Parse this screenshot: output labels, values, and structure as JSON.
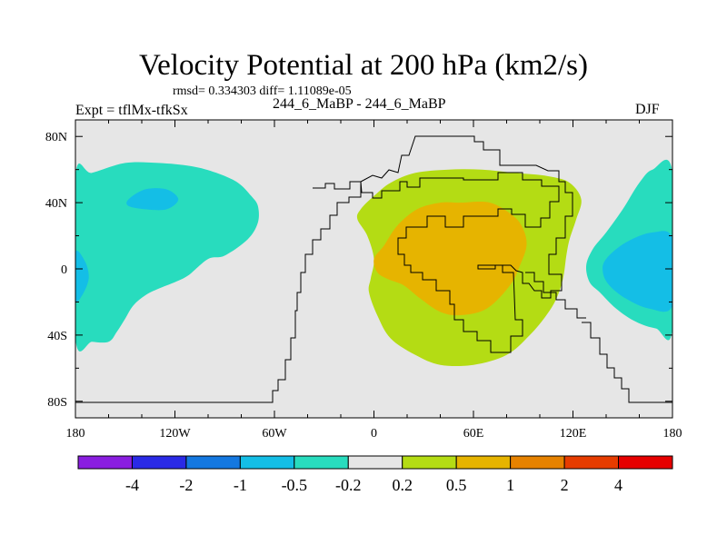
{
  "header": {
    "title": "Velocity Potential at 200 hPa (km2/s)",
    "stats": "rmsd= 0.334303 diff= 1.11089e-05",
    "experiment": "Expt = tflMx-tfkSx",
    "comparison": "244_6_MaBP - 244_6_MaBP",
    "season": "DJF"
  },
  "chart_data": {
    "type": "contour-map",
    "title": "Velocity Potential at 200 hPa (km2/s)",
    "x_range": [
      -180,
      180
    ],
    "y_range": [
      -90,
      90
    ],
    "x_ticks": [
      {
        "value": -180,
        "label": "180"
      },
      {
        "value": -120,
        "label": "120W"
      },
      {
        "value": -60,
        "label": "60W"
      },
      {
        "value": 0,
        "label": "0"
      },
      {
        "value": 60,
        "label": "60E"
      },
      {
        "value": 120,
        "label": "120E"
      },
      {
        "value": 180,
        "label": "180"
      }
    ],
    "y_ticks": [
      {
        "value": 80,
        "label": "80N"
      },
      {
        "value": 40,
        "label": "40N"
      },
      {
        "value": 0,
        "label": "0"
      },
      {
        "value": -40,
        "label": "40S"
      },
      {
        "value": -80,
        "label": "80S"
      }
    ],
    "colorbar": {
      "colors": [
        "#8a1ee0",
        "#2a2ae6",
        "#1478e0",
        "#14bee6",
        "#28dcbe",
        "#e6e6e6",
        "#b4dc14",
        "#e6b400",
        "#e68200",
        "#e63c00",
        "#e60000"
      ],
      "boundaries": [
        "-4",
        "-2",
        "-1",
        "-0.5",
        "-0.2",
        "0.2",
        "0.5",
        "1",
        "2",
        "4"
      ]
    },
    "fill_regions": [
      {
        "name": "west-pacific-negative",
        "level": "-0.5 to -0.2",
        "color": "#28dcbe",
        "lonlat": [
          [
            -180,
            56
          ],
          [
            -170,
            58
          ],
          [
            -150,
            64
          ],
          [
            -130,
            64
          ],
          [
            -110,
            62
          ],
          [
            -95,
            58
          ],
          [
            -82,
            52
          ],
          [
            -74,
            44
          ],
          [
            -70,
            38
          ],
          [
            -70,
            28
          ],
          [
            -76,
            18
          ],
          [
            -90,
            8
          ],
          [
            -100,
            6
          ],
          [
            -112,
            -4
          ],
          [
            -120,
            -8
          ],
          [
            -130,
            -12
          ],
          [
            -138,
            -16
          ],
          [
            -145,
            -22
          ],
          [
            -150,
            -30
          ],
          [
            -155,
            -38
          ],
          [
            -160,
            -44
          ],
          [
            -170,
            -44
          ],
          [
            -180,
            -42
          ]
        ]
      },
      {
        "name": "west-pacific-core",
        "level": "-1 to -0.5",
        "color": "#14bee6",
        "lonlat": [
          [
            -148,
            42
          ],
          [
            -138,
            48
          ],
          [
            -125,
            48
          ],
          [
            -118,
            42
          ],
          [
            -125,
            36
          ],
          [
            -138,
            36
          ],
          [
            -148,
            38
          ]
        ]
      },
      {
        "name": "west-edge-core",
        "level": "-1 to -0.5",
        "color": "#14bee6",
        "lonlat": [
          [
            -180,
            10
          ],
          [
            -174,
            4
          ],
          [
            -172,
            -6
          ],
          [
            -176,
            -16
          ],
          [
            -180,
            -18
          ]
        ]
      },
      {
        "name": "east-pacific-negative",
        "level": "-0.5 to -0.2",
        "color": "#28dcbe",
        "lonlat": [
          [
            180,
            58
          ],
          [
            168,
            60
          ],
          [
            160,
            52
          ],
          [
            150,
            36
          ],
          [
            140,
            22
          ],
          [
            132,
            12
          ],
          [
            128,
            2
          ],
          [
            130,
            -8
          ],
          [
            136,
            -14
          ],
          [
            146,
            -24
          ],
          [
            158,
            -32
          ],
          [
            170,
            -36
          ],
          [
            180,
            -36
          ]
        ]
      },
      {
        "name": "east-pacific-core",
        "level": "-1 to -0.5",
        "color": "#14bee6",
        "lonlat": [
          [
            180,
            18
          ],
          [
            168,
            22
          ],
          [
            152,
            16
          ],
          [
            140,
            6
          ],
          [
            138,
            -2
          ],
          [
            142,
            -10
          ],
          [
            152,
            -18
          ],
          [
            166,
            -24
          ],
          [
            180,
            -22
          ]
        ]
      },
      {
        "name": "africa-indian-positive",
        "level": "0.2 to 0.5",
        "color": "#b4dc14",
        "lonlat": [
          [
            -8,
            36
          ],
          [
            0,
            44
          ],
          [
            10,
            52
          ],
          [
            25,
            58
          ],
          [
            45,
            60
          ],
          [
            65,
            60
          ],
          [
            85,
            58
          ],
          [
            105,
            56
          ],
          [
            118,
            52
          ],
          [
            125,
            42
          ],
          [
            122,
            30
          ],
          [
            118,
            18
          ],
          [
            116,
            8
          ],
          [
            114,
            -6
          ],
          [
            110,
            -18
          ],
          [
            104,
            -28
          ],
          [
            94,
            -40
          ],
          [
            80,
            -52
          ],
          [
            60,
            -58
          ],
          [
            40,
            -58
          ],
          [
            25,
            -52
          ],
          [
            10,
            -42
          ],
          [
            2,
            -28
          ],
          [
            -3,
            -14
          ],
          [
            -2,
            -6
          ],
          [
            0,
            6
          ],
          [
            -4,
            20
          ],
          [
            -10,
            30
          ]
        ]
      },
      {
        "name": "africa-indian-core",
        "level": "0.5 to 1",
        "color": "#e6b400",
        "lonlat": [
          [
            0,
            6
          ],
          [
            6,
            14
          ],
          [
            14,
            26
          ],
          [
            26,
            36
          ],
          [
            40,
            40
          ],
          [
            52,
            40
          ],
          [
            70,
            40
          ],
          [
            84,
            32
          ],
          [
            90,
            24
          ],
          [
            92,
            14
          ],
          [
            88,
            2
          ],
          [
            82,
            -10
          ],
          [
            68,
            -24
          ],
          [
            52,
            -28
          ],
          [
            40,
            -26
          ],
          [
            28,
            -18
          ],
          [
            18,
            -10
          ],
          [
            8,
            -6
          ],
          [
            2,
            -2
          ]
        ]
      }
    ]
  }
}
